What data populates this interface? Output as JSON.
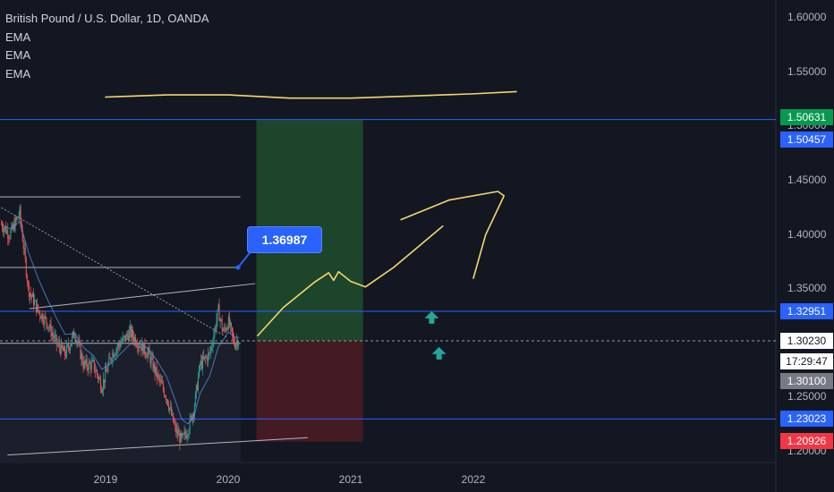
{
  "legend": {
    "title": "British Pound / U.S. Dollar, 1D, OANDA",
    "indicators": [
      "EMA",
      "EMA",
      "EMA"
    ]
  },
  "callout_label": "1.36987",
  "price_tags": {
    "target": "1.50631",
    "level_upper": "1.50457",
    "level_mid": "1.32951",
    "last_price": "1.30230",
    "countdown": "17:29:47",
    "stop": "1.30100",
    "level_lower": "1.23023",
    "stop_loss": "1.20926"
  },
  "colors": {
    "background": "#131722",
    "bull": "#26a69a",
    "bear": "#ef5350",
    "drawing": "#f5d76e",
    "levels": "#2962ff",
    "profit_zone": "#1e4a2c",
    "loss_zone": "#4a1c24"
  },
  "chart_data": {
    "type": "candlestick",
    "symbol": "GBPUSD",
    "title": "British Pound / U.S. Dollar, 1D, OANDA",
    "ylim": [
      1.18,
      1.62
    ],
    "y_ticks": [
      1.2,
      1.25,
      1.3,
      1.35,
      1.4,
      1.45,
      1.5,
      1.55,
      1.6
    ],
    "y_tick_labels": [
      "1.20000",
      "1.25000",
      "1.30000",
      "1.35000",
      "1.40000",
      "1.45000",
      "1.50000",
      "1.55000",
      "1.60000"
    ],
    "x_ticks": [
      {
        "label": "2019",
        "year": 2019.0
      },
      {
        "label": "2020",
        "year": 2020.0
      },
      {
        "label": "2021",
        "year": 2021.0
      },
      {
        "label": "2022",
        "year": 2022.0
      }
    ],
    "x_range_years": [
      2018.15,
      2023.0
    ],
    "series": [
      {
        "name": "GBPUSD close",
        "points": [
          [
            2018.15,
            1.41
          ],
          [
            2018.22,
            1.4
          ],
          [
            2018.3,
            1.42
          ],
          [
            2018.37,
            1.35
          ],
          [
            2018.45,
            1.33
          ],
          [
            2018.52,
            1.32
          ],
          [
            2018.6,
            1.3
          ],
          [
            2018.67,
            1.29
          ],
          [
            2018.75,
            1.31
          ],
          [
            2018.82,
            1.28
          ],
          [
            2018.9,
            1.28
          ],
          [
            2018.97,
            1.26
          ],
          [
            2019.05,
            1.29
          ],
          [
            2019.12,
            1.3
          ],
          [
            2019.2,
            1.31
          ],
          [
            2019.27,
            1.3
          ],
          [
            2019.35,
            1.29
          ],
          [
            2019.42,
            1.27
          ],
          [
            2019.5,
            1.25
          ],
          [
            2019.57,
            1.22
          ],
          [
            2019.62,
            1.21
          ],
          [
            2019.67,
            1.22
          ],
          [
            2019.72,
            1.24
          ],
          [
            2019.77,
            1.28
          ],
          [
            2019.85,
            1.29
          ],
          [
            2019.92,
            1.33
          ],
          [
            2019.96,
            1.31
          ],
          [
            2020.0,
            1.32
          ],
          [
            2020.05,
            1.3
          ],
          [
            2020.09,
            1.305
          ]
        ]
      }
    ],
    "levels": {
      "target": 1.50631,
      "entry_upper": 1.50457,
      "resistance": 1.32951,
      "last": 1.3023,
      "stop": 1.301,
      "support": 1.23023,
      "stop_loss": 1.20926,
      "callout": 1.36987
    },
    "position": {
      "entry": 1.3023,
      "target": 1.50631,
      "stop": 1.20926,
      "start_year": 2020.23,
      "end_year": 2021.1
    },
    "drawings": {
      "top_curve": [
        [
          2019.0,
          1.527
        ],
        [
          2019.5,
          1.529
        ],
        [
          2020.0,
          1.529
        ],
        [
          2020.5,
          1.526
        ],
        [
          2021.0,
          1.526
        ],
        [
          2021.5,
          1.528
        ],
        [
          2022.0,
          1.53
        ],
        [
          2022.35,
          1.532
        ]
      ],
      "projection": [
        [
          2020.24,
          1.307
        ],
        [
          2020.45,
          1.333
        ],
        [
          2020.7,
          1.356
        ],
        [
          2020.82,
          1.365
        ],
        [
          2020.86,
          1.358
        ],
        [
          2020.9,
          1.366
        ],
        [
          2021.0,
          1.357
        ],
        [
          2021.12,
          1.352
        ],
        [
          2021.35,
          1.37
        ],
        [
          2021.55,
          1.389
        ],
        [
          2021.75,
          1.408
        ]
      ],
      "arrow_upper": [
        [
          2021.41,
          1.414
        ],
        [
          2021.8,
          1.432
        ],
        [
          2022.2,
          1.44
        ],
        [
          2022.25,
          1.436
        ],
        [
          2022.1,
          1.4
        ],
        [
          2022.0,
          1.36
        ]
      ]
    }
  }
}
